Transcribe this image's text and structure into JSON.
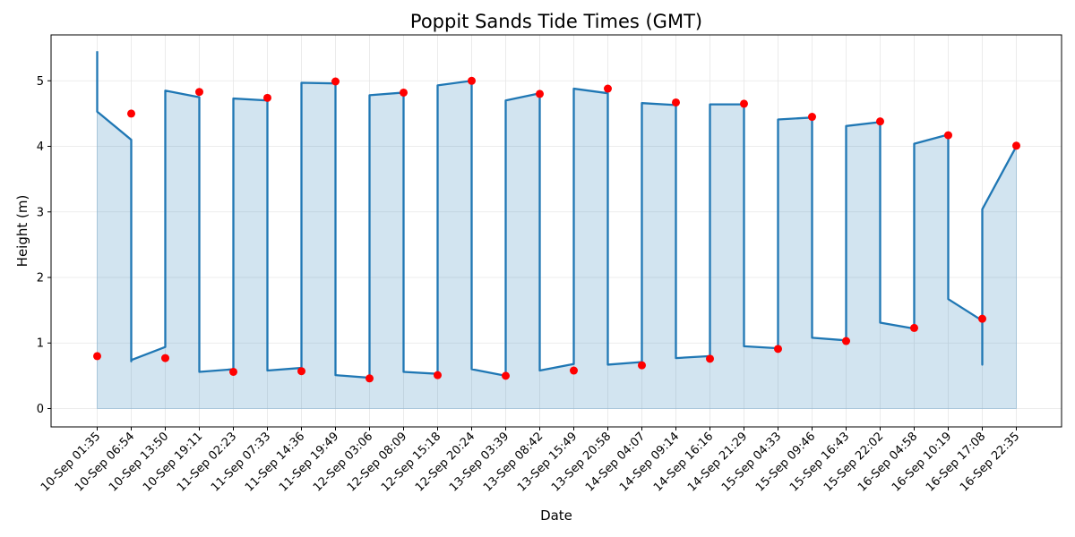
{
  "chart_data": {
    "type": "area",
    "title": "Poppit Sands Tide Times (GMT)",
    "xlabel": "Date",
    "ylabel": "Height (m)",
    "ylim": [
      -0.28,
      5.7
    ],
    "yticks": [
      0,
      1,
      2,
      3,
      4,
      5
    ],
    "grid": true,
    "colors": {
      "line": "#1f77b4",
      "fill": "#1f77b4",
      "marker": "#ff0000",
      "grid": "#e6e6e6"
    },
    "categories": [
      "10-Sep 01:35",
      "10-Sep 06:54",
      "10-Sep 13:50",
      "10-Sep 19:11",
      "11-Sep 02:23",
      "11-Sep 07:33",
      "11-Sep 14:36",
      "11-Sep 19:49",
      "12-Sep 03:06",
      "12-Sep 08:09",
      "12-Sep 15:18",
      "12-Sep 20:24",
      "13-Sep 03:39",
      "13-Sep 08:42",
      "13-Sep 15:49",
      "13-Sep 20:58",
      "14-Sep 04:07",
      "14-Sep 09:14",
      "14-Sep 16:16",
      "14-Sep 21:29",
      "15-Sep 04:33",
      "15-Sep 09:46",
      "15-Sep 16:43",
      "15-Sep 22:02",
      "16-Sep 04:58",
      "16-Sep 10:19",
      "16-Sep 17:08",
      "16-Sep 22:35"
    ],
    "tide_heights": [
      0.8,
      4.5,
      0.77,
      4.83,
      0.56,
      4.74,
      0.57,
      4.99,
      0.46,
      4.82,
      0.51,
      5.0,
      0.5,
      4.8,
      0.58,
      4.88,
      0.66,
      4.67,
      0.76,
      4.65,
      0.91,
      4.45,
      1.03,
      4.38,
      1.23,
      4.17,
      1.37,
      4.01
    ],
    "curve": [
      [
        0,
        5.45
      ],
      [
        0,
        4.53
      ],
      [
        1,
        4.1
      ],
      [
        1,
        0.72
      ],
      [
        1,
        0.74
      ],
      [
        2,
        0.94
      ],
      [
        2,
        4.85
      ],
      [
        3,
        4.75
      ],
      [
        3,
        0.56
      ],
      [
        4,
        0.6
      ],
      [
        4,
        4.73
      ],
      [
        5,
        4.7
      ],
      [
        5,
        0.58
      ],
      [
        6,
        0.62
      ],
      [
        6,
        4.97
      ],
      [
        7,
        4.96
      ],
      [
        7,
        0.51
      ],
      [
        8,
        0.47
      ],
      [
        8,
        4.78
      ],
      [
        9,
        4.82
      ],
      [
        9,
        0.56
      ],
      [
        10,
        0.53
      ],
      [
        10,
        4.93
      ],
      [
        11,
        5.0
      ],
      [
        11,
        0.6
      ],
      [
        12,
        0.5
      ],
      [
        12,
        4.7
      ],
      [
        13,
        4.81
      ],
      [
        13,
        0.58
      ],
      [
        14,
        0.68
      ],
      [
        14,
        4.88
      ],
      [
        15,
        4.81
      ],
      [
        15,
        0.67
      ],
      [
        16,
        0.71
      ],
      [
        16,
        4.66
      ],
      [
        17,
        4.63
      ],
      [
        17,
        0.77
      ],
      [
        18,
        0.8
      ],
      [
        18,
        4.64
      ],
      [
        19,
        4.64
      ],
      [
        19,
        0.95
      ],
      [
        20,
        0.92
      ],
      [
        20,
        4.41
      ],
      [
        21,
        4.44
      ],
      [
        21,
        1.08
      ],
      [
        22,
        1.04
      ],
      [
        22,
        4.31
      ],
      [
        23,
        4.37
      ],
      [
        23,
        1.31
      ],
      [
        24,
        1.22
      ],
      [
        24,
        4.04
      ],
      [
        25,
        4.18
      ],
      [
        25,
        1.67
      ],
      [
        26,
        1.34
      ],
      [
        26,
        0.67
      ],
      [
        26,
        3.04
      ],
      [
        27,
        4.0
      ]
    ],
    "series": [
      {
        "values_ref": "curve"
      },
      {
        "values_ref": "tide_heights"
      }
    ]
  }
}
